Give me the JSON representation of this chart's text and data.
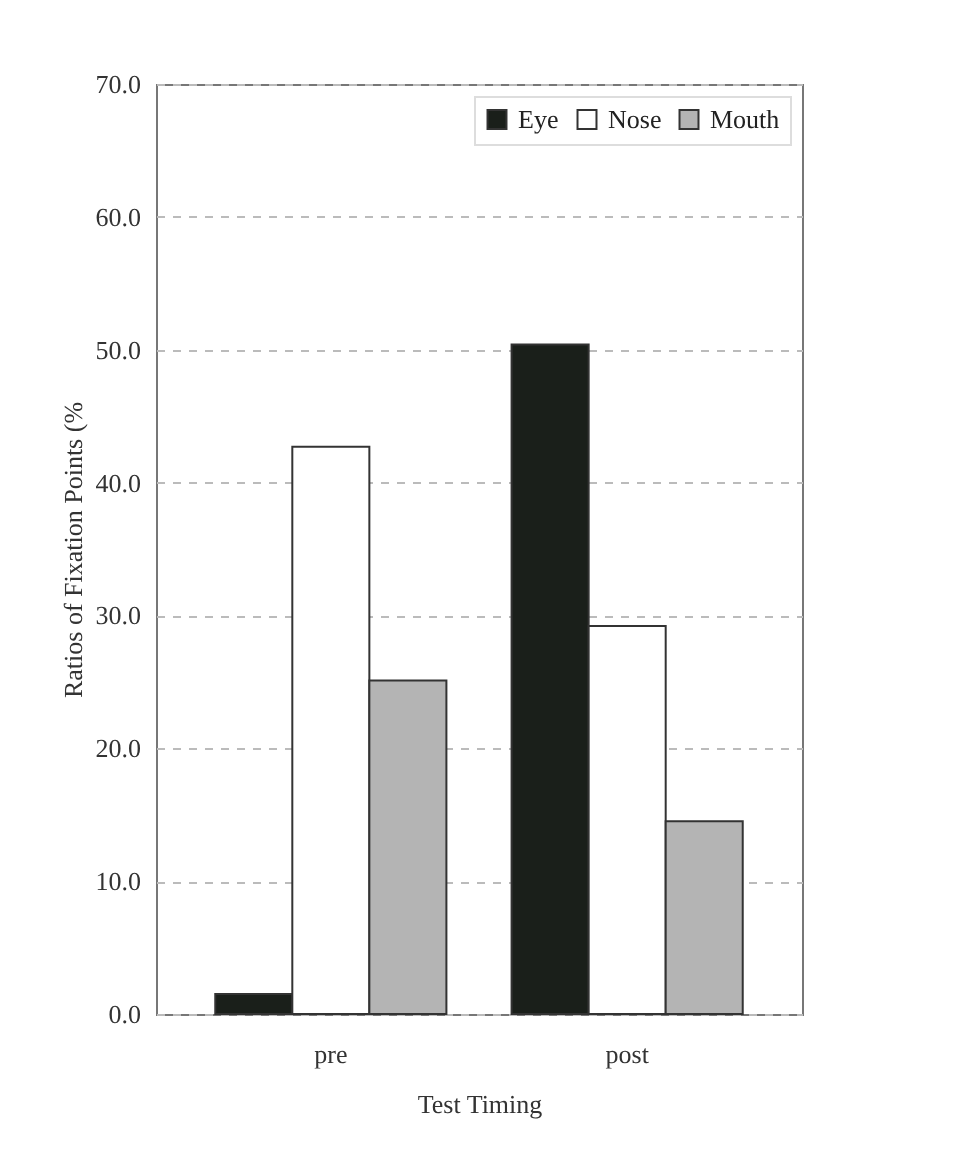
{
  "chart_data": {
    "type": "bar",
    "xlabel": "Test Timing",
    "ylabel": "Ratios of Fixation Points (%",
    "categories": [
      "pre",
      "post"
    ],
    "series": [
      {
        "name": "Eye",
        "color": "#1a1f1a",
        "values": [
          1.5,
          50.4
        ]
      },
      {
        "name": "Nose",
        "color": "#ffffff",
        "values": [
          42.7,
          29.2
        ]
      },
      {
        "name": "Mouth",
        "color": "#b4b4b4",
        "values": [
          25.1,
          14.5
        ]
      }
    ],
    "ylim": [
      0,
      70
    ],
    "yticks": [
      {
        "value": 0,
        "label": "0.0"
      },
      {
        "value": 10,
        "label": "10.0"
      },
      {
        "value": 20,
        "label": "20.0"
      },
      {
        "value": 30,
        "label": "30.0"
      },
      {
        "value": 40,
        "label": "40.0"
      },
      {
        "value": 50,
        "label": "50.0"
      },
      {
        "value": 60,
        "label": "60.0"
      },
      {
        "value": 70,
        "label": "70.0"
      }
    ],
    "grid": "y",
    "legend": "top right"
  }
}
